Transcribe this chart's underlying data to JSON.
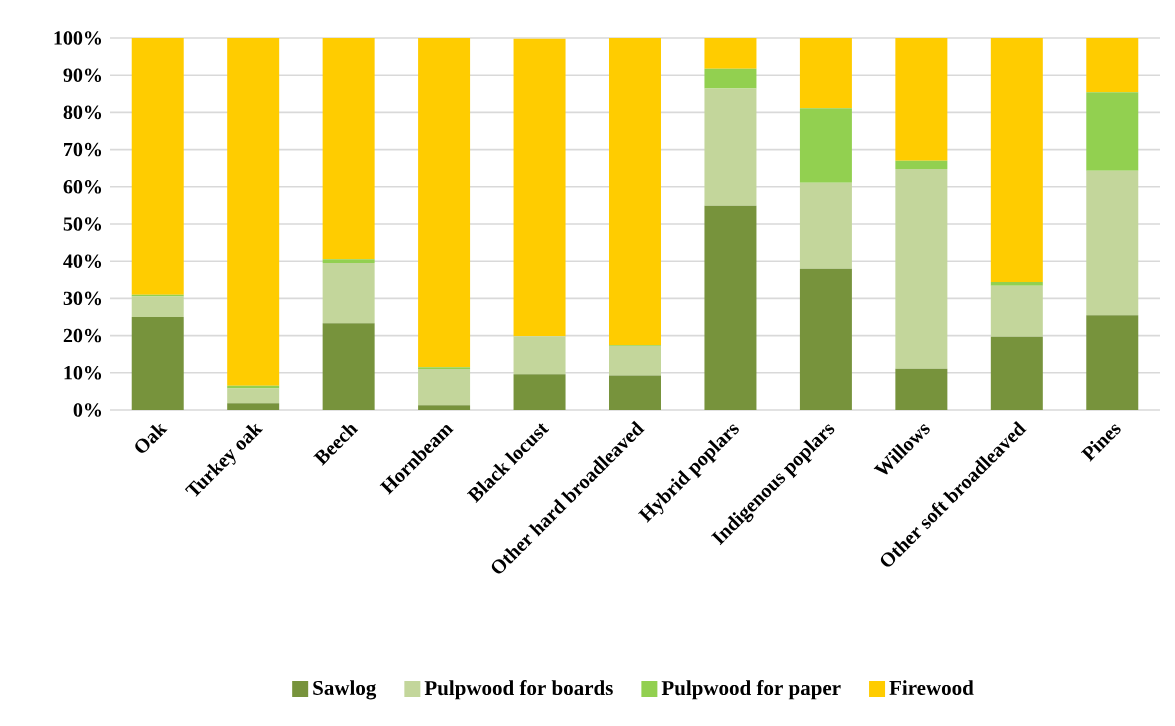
{
  "chart_data": {
    "type": "bar",
    "stacked": true,
    "grid": "y",
    "legend": "bottom",
    "categories": [
      "Oak",
      "Turkey oak",
      "Beech",
      "Hornbeam",
      "Black locust",
      "Other hard broadleaved",
      "Hybrid poplars",
      "Indigenous poplars",
      "Willows",
      "Other soft broadleaved",
      "Pines"
    ],
    "series": [
      {
        "name": "Sawlog",
        "color": "#77933c",
        "values": [
          25,
          1.8,
          23.3,
          1.3,
          9.6,
          9.3,
          54.9,
          38.0,
          11.1,
          19.7,
          25.5
        ]
      },
      {
        "name": "Pulpwood for boards",
        "color": "#c3d69b",
        "values": [
          5.5,
          4,
          16.2,
          9.7,
          10.2,
          7.9,
          31.5,
          23.1,
          53.7,
          13.7,
          38.8
        ]
      },
      {
        "name": "Pulpwood for paper",
        "color": "#92d050",
        "values": [
          0.5,
          0.7,
          1,
          0.5,
          null,
          0.2,
          5.3,
          20.0,
          2.2,
          1.0,
          21.1
        ]
      },
      {
        "name": "Firewood",
        "color": "#ffcc00",
        "values": [
          69,
          93.5,
          59.5,
          88.5,
          80,
          82.6,
          8.3,
          18.9,
          33,
          65.6,
          14.6
        ]
      }
    ],
    "ylim": [
      0,
      100
    ],
    "yticks": [
      {
        "value": 0,
        "label": "0%"
      },
      {
        "value": 10,
        "label": "10%"
      },
      {
        "value": 20,
        "label": "20%"
      },
      {
        "value": 30,
        "label": "30%"
      },
      {
        "value": 40,
        "label": "40%"
      },
      {
        "value": 50,
        "label": "50%"
      },
      {
        "value": 60,
        "label": "60%"
      },
      {
        "value": 70,
        "label": "70%"
      },
      {
        "value": 80,
        "label": "80%"
      },
      {
        "value": 90,
        "label": "90%"
      },
      {
        "value": 100,
        "label": "100%"
      }
    ]
  }
}
